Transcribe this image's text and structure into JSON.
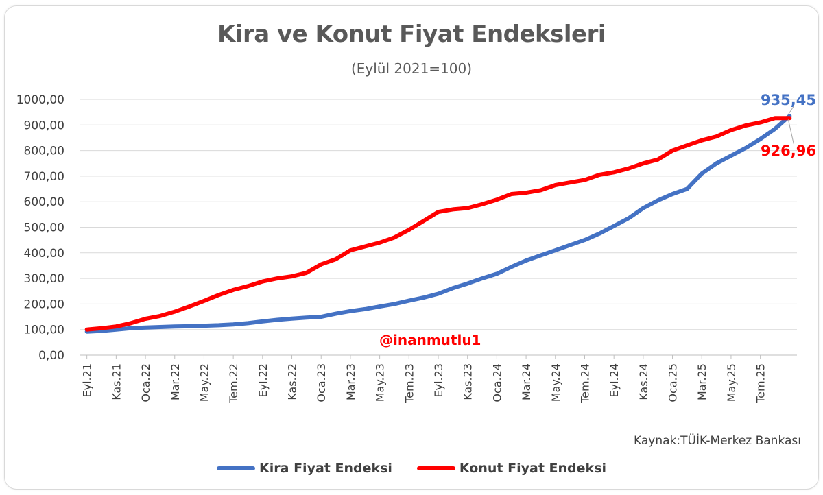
{
  "chart_data": {
    "type": "line",
    "title": "Kira ve Konut Fiyat Endeksleri",
    "subtitle": "(Eylül 2021=100)",
    "source": "Kaynak:TÜİK-Merkez Bankası",
    "watermark": "@inanmutlu1",
    "ylim": [
      0,
      1000
    ],
    "yticks": [
      "0,00",
      "100,00",
      "200,00",
      "300,00",
      "400,00",
      "500,00",
      "600,00",
      "700,00",
      "800,00",
      "900,00",
      "1000,00"
    ],
    "grid": true,
    "legend_position": "bottom",
    "xtick_labels": [
      "Eyl.21",
      "Kas.21",
      "Oca.22",
      "Mar.22",
      "May.22",
      "Tem.22",
      "Eyl.22",
      "Kas.22",
      "Oca.23",
      "Mar.23",
      "May.23",
      "Tem.23",
      "Eyl.23",
      "Kas.23",
      "Oca.24",
      "Mar.24",
      "May.24",
      "Tem.24",
      "Eyl.24",
      "Kas.24",
      "Oca.25",
      "Mar.25",
      "May.25",
      "Tem.25"
    ],
    "categories": [
      "Eyl.21",
      "Eki.21",
      "Kas.21",
      "Ara.21",
      "Oca.22",
      "Şub.22",
      "Mar.22",
      "Nis.22",
      "May.22",
      "Haz.22",
      "Tem.22",
      "Ağu.22",
      "Eyl.22",
      "Eki.22",
      "Kas.22",
      "Ara.22",
      "Oca.23",
      "Şub.23",
      "Mar.23",
      "Nis.23",
      "May.23",
      "Haz.23",
      "Tem.23",
      "Ağu.23",
      "Eyl.23",
      "Eki.23",
      "Kas.23",
      "Ara.23",
      "Oca.24",
      "Şub.24",
      "Mar.24",
      "Nis.24",
      "May.24",
      "Haz.24",
      "Tem.24",
      "Ağu.24",
      "Eyl.24",
      "Eki.24",
      "Kas.24",
      "Ara.24",
      "Oca.25",
      "Şub.25",
      "Mar.25",
      "Nis.25",
      "May.25",
      "Haz.25",
      "Tem.25",
      "Ağu.25",
      "Eyl.25"
    ],
    "series": [
      {
        "name": "Kira Fiyat Endeksi",
        "color": "#4472c4",
        "end_label": "935,45",
        "values": [
          92,
          95,
          100,
          105,
          108,
          110,
          112,
          113,
          115,
          117,
          120,
          125,
          132,
          138,
          143,
          147,
          150,
          162,
          172,
          180,
          190,
          200,
          213,
          225,
          240,
          262,
          280,
          300,
          318,
          345,
          370,
          390,
          410,
          430,
          450,
          475,
          505,
          535,
          575,
          605,
          630,
          650,
          710,
          750,
          780,
          810,
          845,
          885,
          935.45
        ]
      },
      {
        "name": "Konut Fiyat Endeksi",
        "color": "#ff0000",
        "end_label": "926,96",
        "values": [
          100,
          105,
          112,
          125,
          142,
          153,
          170,
          190,
          212,
          235,
          255,
          270,
          288,
          300,
          308,
          322,
          355,
          375,
          410,
          425,
          440,
          460,
          490,
          525,
          560,
          570,
          575,
          590,
          608,
          630,
          635,
          645,
          665,
          675,
          685,
          705,
          715,
          730,
          750,
          765,
          800,
          820,
          840,
          855,
          880,
          898,
          910,
          926.96,
          926.96
        ]
      }
    ]
  }
}
